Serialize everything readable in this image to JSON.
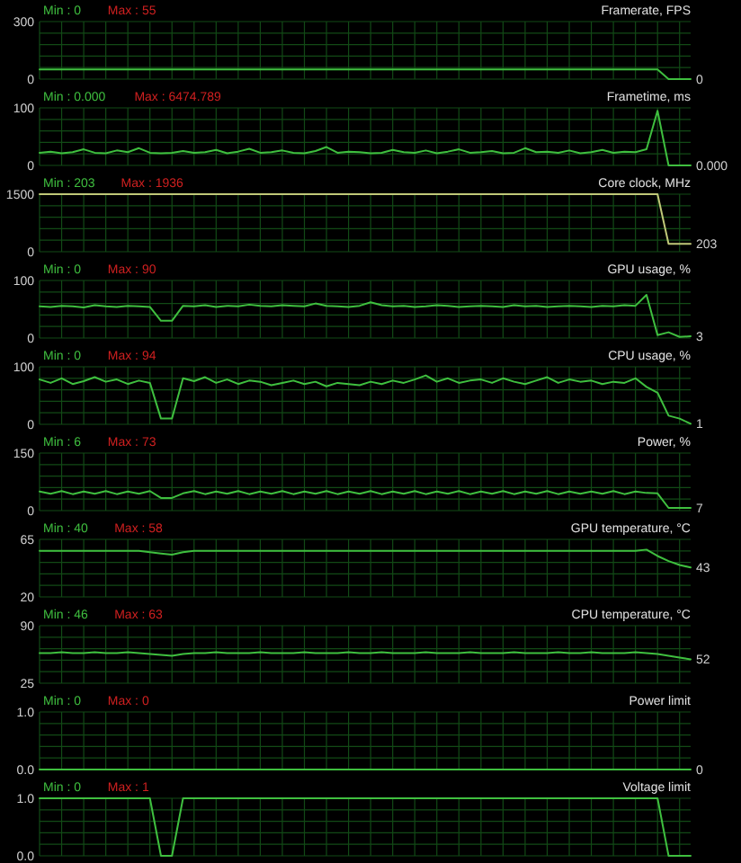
{
  "chart_data": [
    {
      "type": "line",
      "title": "Framerate, FPS",
      "annotations": [
        "Min : 0",
        "Max : 55"
      ],
      "grid": true,
      "ylim": [
        0,
        300
      ],
      "yticks": [
        0,
        {
          "value": 60,
          "label": null
        },
        {
          "value": 120,
          "label": null
        },
        {
          "value": 180,
          "label": null
        },
        {
          "value": 240,
          "label": null
        },
        300
      ],
      "categories": [
        null,
        null,
        null,
        null,
        null,
        null,
        null,
        null,
        null,
        null,
        null,
        null,
        null,
        null,
        null,
        null,
        null,
        null,
        null,
        null,
        null,
        null,
        null,
        null,
        null,
        null,
        null,
        null,
        null,
        null,
        null,
        null,
        null,
        null,
        null,
        null,
        null,
        null,
        null,
        null,
        null,
        null,
        null,
        null,
        null,
        null,
        null,
        null,
        null,
        null,
        null,
        null,
        null,
        null,
        null,
        null,
        null,
        null,
        null,
        null
      ],
      "series": [
        {
          "color": "#3fbf3f",
          "value_labels": [
            null,
            null,
            null,
            null,
            null,
            null,
            null,
            null,
            null,
            null,
            null,
            null,
            null,
            null,
            null,
            null,
            null,
            null,
            null,
            null,
            null,
            null,
            null,
            null,
            null,
            null,
            null,
            null,
            null,
            null,
            null,
            null,
            null,
            null,
            null,
            null,
            null,
            null,
            null,
            null,
            null,
            null,
            null,
            null,
            null,
            null,
            null,
            null,
            null,
            null,
            null,
            null,
            null,
            null,
            null,
            null,
            null,
            null,
            null,
            "0"
          ],
          "values": [
            50,
            50,
            50,
            50,
            50,
            50,
            50,
            50,
            50,
            50,
            50,
            50,
            50,
            50,
            50,
            50,
            50,
            50,
            50,
            50,
            50,
            50,
            50,
            50,
            50,
            50,
            50,
            50,
            50,
            50,
            50,
            50,
            50,
            50,
            50,
            50,
            50,
            50,
            50,
            50,
            50,
            50,
            50,
            50,
            50,
            50,
            50,
            50,
            50,
            50,
            50,
            50,
            50,
            50,
            50,
            50,
            50,
            0,
            0,
            0
          ]
        }
      ]
    },
    {
      "type": "line",
      "title": "Frametime, ms",
      "annotations": [
        "Min : 0.000",
        "Max : 6474.789"
      ],
      "grid": true,
      "ylim": [
        0,
        100
      ],
      "yticks": [
        0,
        {
          "value": 20,
          "label": null
        },
        {
          "value": 40,
          "label": null
        },
        {
          "value": 60,
          "label": null
        },
        {
          "value": 80,
          "label": null
        },
        100
      ],
      "categories": [
        null,
        null,
        null,
        null,
        null,
        null,
        null,
        null,
        null,
        null,
        null,
        null,
        null,
        null,
        null,
        null,
        null,
        null,
        null,
        null,
        null,
        null,
        null,
        null,
        null,
        null,
        null,
        null,
        null,
        null,
        null,
        null,
        null,
        null,
        null,
        null,
        null,
        null,
        null,
        null,
        null,
        null,
        null,
        null,
        null,
        null,
        null,
        null,
        null,
        null,
        null,
        null,
        null,
        null,
        null,
        null,
        null,
        null,
        null,
        null
      ],
      "series": [
        {
          "color": "#3fbf3f",
          "value_labels": [
            null,
            null,
            null,
            null,
            null,
            null,
            null,
            null,
            null,
            null,
            null,
            null,
            null,
            null,
            null,
            null,
            null,
            null,
            null,
            null,
            null,
            null,
            null,
            null,
            null,
            null,
            null,
            null,
            null,
            null,
            null,
            null,
            null,
            null,
            null,
            null,
            null,
            null,
            null,
            null,
            null,
            null,
            null,
            null,
            null,
            null,
            null,
            null,
            null,
            null,
            null,
            null,
            null,
            null,
            null,
            null,
            null,
            null,
            null,
            "0.000"
          ],
          "values": [
            22,
            24,
            21,
            23,
            28,
            22,
            21,
            26,
            23,
            30,
            22,
            21,
            22,
            25,
            22,
            23,
            27,
            21,
            24,
            29,
            22,
            23,
            26,
            22,
            21,
            25,
            32,
            22,
            24,
            23,
            21,
            22,
            27,
            23,
            22,
            26,
            21,
            24,
            28,
            22,
            23,
            25,
            21,
            22,
            30,
            23,
            24,
            22,
            26,
            21,
            23,
            27,
            22,
            24,
            23,
            28,
            95,
            0,
            0,
            0
          ]
        }
      ]
    },
    {
      "type": "line",
      "title": "Core clock, MHz",
      "annotations": [
        "Min : 203",
        "Max : 1936"
      ],
      "grid": true,
      "ylim": [
        0,
        1500
      ],
      "yticks": [
        0,
        {
          "value": 300,
          "label": null
        },
        {
          "value": 600,
          "label": null
        },
        {
          "value": 900,
          "label": null
        },
        {
          "value": 1200,
          "label": null
        },
        1500
      ],
      "categories": [
        null,
        null,
        null,
        null,
        null,
        null,
        null,
        null,
        null,
        null,
        null,
        null,
        null,
        null,
        null,
        null,
        null,
        null,
        null,
        null,
        null,
        null,
        null,
        null,
        null,
        null,
        null,
        null,
        null,
        null,
        null,
        null,
        null,
        null,
        null,
        null,
        null,
        null,
        null,
        null,
        null,
        null,
        null,
        null,
        null,
        null,
        null,
        null,
        null,
        null,
        null,
        null,
        null,
        null,
        null,
        null,
        null,
        null,
        null,
        null
      ],
      "series": [
        {
          "color": "#c0c878",
          "value_labels": [
            null,
            null,
            null,
            null,
            null,
            null,
            null,
            null,
            null,
            null,
            null,
            null,
            null,
            null,
            null,
            null,
            null,
            null,
            null,
            null,
            null,
            null,
            null,
            null,
            null,
            null,
            null,
            null,
            null,
            null,
            null,
            null,
            null,
            null,
            null,
            null,
            null,
            null,
            null,
            null,
            null,
            null,
            null,
            null,
            null,
            null,
            null,
            null,
            null,
            null,
            null,
            null,
            null,
            null,
            null,
            null,
            null,
            null,
            null,
            "203"
          ],
          "values": [
            1500,
            1500,
            1500,
            1500,
            1500,
            1500,
            1500,
            1500,
            1500,
            1500,
            1500,
            1500,
            1500,
            1500,
            1500,
            1500,
            1500,
            1500,
            1500,
            1500,
            1500,
            1500,
            1500,
            1500,
            1500,
            1500,
            1500,
            1500,
            1500,
            1500,
            1500,
            1500,
            1500,
            1500,
            1500,
            1500,
            1500,
            1500,
            1500,
            1500,
            1500,
            1500,
            1500,
            1500,
            1500,
            1500,
            1500,
            1500,
            1500,
            1500,
            1500,
            1500,
            1500,
            1500,
            1500,
            1500,
            1500,
            203,
            203,
            203
          ]
        }
      ]
    },
    {
      "type": "line",
      "title": "GPU usage, %",
      "annotations": [
        "Min : 0",
        "Max : 90"
      ],
      "grid": true,
      "ylim": [
        0,
        100
      ],
      "yticks": [
        0,
        {
          "value": 20,
          "label": null
        },
        {
          "value": 40,
          "label": null
        },
        {
          "value": 60,
          "label": null
        },
        {
          "value": 80,
          "label": null
        },
        100
      ],
      "categories": [
        null,
        null,
        null,
        null,
        null,
        null,
        null,
        null,
        null,
        null,
        null,
        null,
        null,
        null,
        null,
        null,
        null,
        null,
        null,
        null,
        null,
        null,
        null,
        null,
        null,
        null,
        null,
        null,
        null,
        null,
        null,
        null,
        null,
        null,
        null,
        null,
        null,
        null,
        null,
        null,
        null,
        null,
        null,
        null,
        null,
        null,
        null,
        null,
        null,
        null,
        null,
        null,
        null,
        null,
        null,
        null,
        null,
        null,
        null,
        null
      ],
      "series": [
        {
          "color": "#3fbf3f",
          "value_labels": [
            null,
            null,
            null,
            null,
            null,
            null,
            null,
            null,
            null,
            null,
            null,
            null,
            null,
            null,
            null,
            null,
            null,
            null,
            null,
            null,
            null,
            null,
            null,
            null,
            null,
            null,
            null,
            null,
            null,
            null,
            null,
            null,
            null,
            null,
            null,
            null,
            null,
            null,
            null,
            null,
            null,
            null,
            null,
            null,
            null,
            null,
            null,
            null,
            null,
            null,
            null,
            null,
            null,
            null,
            null,
            null,
            null,
            null,
            null,
            "3"
          ],
          "values": [
            55,
            54,
            56,
            55,
            53,
            57,
            55,
            54,
            56,
            55,
            54,
            30,
            30,
            56,
            55,
            57,
            54,
            56,
            55,
            58,
            56,
            55,
            57,
            56,
            55,
            60,
            56,
            55,
            54,
            56,
            62,
            57,
            55,
            56,
            54,
            55,
            57,
            56,
            54,
            55,
            56,
            55,
            54,
            57,
            55,
            56,
            54,
            55,
            56,
            55,
            54,
            56,
            55,
            57,
            56,
            75,
            5,
            10,
            2,
            3
          ]
        }
      ]
    },
    {
      "type": "line",
      "title": "CPU usage, %",
      "annotations": [
        "Min : 0",
        "Max : 94"
      ],
      "grid": true,
      "ylim": [
        0,
        100
      ],
      "yticks": [
        0,
        {
          "value": 20,
          "label": null
        },
        {
          "value": 40,
          "label": null
        },
        {
          "value": 60,
          "label": null
        },
        {
          "value": 80,
          "label": null
        },
        100
      ],
      "categories": [
        null,
        null,
        null,
        null,
        null,
        null,
        null,
        null,
        null,
        null,
        null,
        null,
        null,
        null,
        null,
        null,
        null,
        null,
        null,
        null,
        null,
        null,
        null,
        null,
        null,
        null,
        null,
        null,
        null,
        null,
        null,
        null,
        null,
        null,
        null,
        null,
        null,
        null,
        null,
        null,
        null,
        null,
        null,
        null,
        null,
        null,
        null,
        null,
        null,
        null,
        null,
        null,
        null,
        null,
        null,
        null,
        null,
        null,
        null,
        null
      ],
      "series": [
        {
          "color": "#3fbf3f",
          "value_labels": [
            null,
            null,
            null,
            null,
            null,
            null,
            null,
            null,
            null,
            null,
            null,
            null,
            null,
            null,
            null,
            null,
            null,
            null,
            null,
            null,
            null,
            null,
            null,
            null,
            null,
            null,
            null,
            null,
            null,
            null,
            null,
            null,
            null,
            null,
            null,
            null,
            null,
            null,
            null,
            null,
            null,
            null,
            null,
            null,
            null,
            null,
            null,
            null,
            null,
            null,
            null,
            null,
            null,
            null,
            null,
            null,
            null,
            null,
            null,
            "1"
          ],
          "values": [
            78,
            72,
            80,
            70,
            75,
            82,
            74,
            78,
            70,
            76,
            72,
            10,
            10,
            80,
            75,
            82,
            72,
            78,
            70,
            76,
            74,
            68,
            72,
            76,
            70,
            74,
            66,
            72,
            70,
            68,
            74,
            70,
            76,
            72,
            78,
            85,
            74,
            80,
            72,
            76,
            78,
            72,
            80,
            74,
            70,
            76,
            82,
            72,
            78,
            74,
            76,
            70,
            74,
            72,
            80,
            65,
            55,
            15,
            10,
            1
          ]
        }
      ]
    },
    {
      "type": "line",
      "title": "Power, %",
      "annotations": [
        "Min : 6",
        "Max : 73"
      ],
      "grid": true,
      "ylim": [
        0,
        150
      ],
      "yticks": [
        0,
        {
          "value": 30,
          "label": null
        },
        {
          "value": 60,
          "label": null
        },
        {
          "value": 90,
          "label": null
        },
        {
          "value": 120,
          "label": null
        },
        150
      ],
      "categories": [
        null,
        null,
        null,
        null,
        null,
        null,
        null,
        null,
        null,
        null,
        null,
        null,
        null,
        null,
        null,
        null,
        null,
        null,
        null,
        null,
        null,
        null,
        null,
        null,
        null,
        null,
        null,
        null,
        null,
        null,
        null,
        null,
        null,
        null,
        null,
        null,
        null,
        null,
        null,
        null,
        null,
        null,
        null,
        null,
        null,
        null,
        null,
        null,
        null,
        null,
        null,
        null,
        null,
        null,
        null,
        null,
        null,
        null,
        null,
        null
      ],
      "series": [
        {
          "color": "#3fbf3f",
          "value_labels": [
            null,
            null,
            null,
            null,
            null,
            null,
            null,
            null,
            null,
            null,
            null,
            null,
            null,
            null,
            null,
            null,
            null,
            null,
            null,
            null,
            null,
            null,
            null,
            null,
            null,
            null,
            null,
            null,
            null,
            null,
            null,
            null,
            null,
            null,
            null,
            null,
            null,
            null,
            null,
            null,
            null,
            null,
            null,
            null,
            null,
            null,
            null,
            null,
            null,
            null,
            null,
            null,
            null,
            null,
            null,
            null,
            null,
            null,
            null,
            "7"
          ],
          "values": [
            50,
            44,
            51,
            43,
            50,
            44,
            51,
            43,
            50,
            44,
            51,
            33,
            33,
            45,
            51,
            43,
            50,
            44,
            51,
            43,
            50,
            44,
            51,
            43,
            50,
            44,
            51,
            43,
            50,
            44,
            51,
            43,
            50,
            44,
            51,
            43,
            50,
            44,
            51,
            43,
            50,
            44,
            51,
            43,
            50,
            44,
            51,
            43,
            50,
            44,
            50,
            44,
            51,
            43,
            50,
            46,
            45,
            7,
            7,
            7
          ]
        }
      ]
    },
    {
      "type": "line",
      "title": "GPU temperature, °C",
      "annotations": [
        "Min : 40",
        "Max : 58"
      ],
      "grid": true,
      "ylim": [
        20,
        65
      ],
      "yticks": [
        20,
        {
          "value": 29,
          "label": null
        },
        {
          "value": 38,
          "label": null
        },
        {
          "value": 47,
          "label": null
        },
        {
          "value": 56,
          "label": null
        },
        65
      ],
      "categories": [
        null,
        null,
        null,
        null,
        null,
        null,
        null,
        null,
        null,
        null,
        null,
        null,
        null,
        null,
        null,
        null,
        null,
        null,
        null,
        null,
        null,
        null,
        null,
        null,
        null,
        null,
        null,
        null,
        null,
        null,
        null,
        null,
        null,
        null,
        null,
        null,
        null,
        null,
        null,
        null,
        null,
        null,
        null,
        null,
        null,
        null,
        null,
        null,
        null,
        null,
        null,
        null,
        null,
        null,
        null,
        null,
        null,
        null,
        null,
        null
      ],
      "series": [
        {
          "color": "#3fbf3f",
          "value_labels": [
            null,
            null,
            null,
            null,
            null,
            null,
            null,
            null,
            null,
            null,
            null,
            null,
            null,
            null,
            null,
            null,
            null,
            null,
            null,
            null,
            null,
            null,
            null,
            null,
            null,
            null,
            null,
            null,
            null,
            null,
            null,
            null,
            null,
            null,
            null,
            null,
            null,
            null,
            null,
            null,
            null,
            null,
            null,
            null,
            null,
            null,
            null,
            null,
            null,
            null,
            null,
            null,
            null,
            null,
            null,
            null,
            null,
            null,
            null,
            "43"
          ],
          "values": [
            56,
            56,
            56,
            56,
            56,
            56,
            56,
            56,
            56,
            56,
            55,
            54,
            53,
            55,
            56,
            56,
            56,
            56,
            56,
            56,
            56,
            56,
            56,
            56,
            56,
            56,
            56,
            56,
            56,
            56,
            56,
            56,
            56,
            56,
            56,
            56,
            56,
            56,
            56,
            56,
            56,
            56,
            56,
            56,
            56,
            56,
            56,
            56,
            56,
            56,
            56,
            56,
            56,
            56,
            56,
            57,
            52,
            48,
            45,
            43
          ]
        }
      ]
    },
    {
      "type": "line",
      "title": "CPU temperature, °C",
      "annotations": [
        "Min : 46",
        "Max : 63"
      ],
      "grid": true,
      "ylim": [
        25,
        90
      ],
      "yticks": [
        25,
        {
          "value": 38,
          "label": null
        },
        {
          "value": 51,
          "label": null
        },
        {
          "value": 64,
          "label": null
        },
        {
          "value": 77,
          "label": null
        },
        90
      ],
      "categories": [
        null,
        null,
        null,
        null,
        null,
        null,
        null,
        null,
        null,
        null,
        null,
        null,
        null,
        null,
        null,
        null,
        null,
        null,
        null,
        null,
        null,
        null,
        null,
        null,
        null,
        null,
        null,
        null,
        null,
        null,
        null,
        null,
        null,
        null,
        null,
        null,
        null,
        null,
        null,
        null,
        null,
        null,
        null,
        null,
        null,
        null,
        null,
        null,
        null,
        null,
        null,
        null,
        null,
        null,
        null,
        null,
        null,
        null,
        null,
        null
      ],
      "series": [
        {
          "color": "#3fbf3f",
          "value_labels": [
            null,
            null,
            null,
            null,
            null,
            null,
            null,
            null,
            null,
            null,
            null,
            null,
            null,
            null,
            null,
            null,
            null,
            null,
            null,
            null,
            null,
            null,
            null,
            null,
            null,
            null,
            null,
            null,
            null,
            null,
            null,
            null,
            null,
            null,
            null,
            null,
            null,
            null,
            null,
            null,
            null,
            null,
            null,
            null,
            null,
            null,
            null,
            null,
            null,
            null,
            null,
            null,
            null,
            null,
            null,
            null,
            null,
            null,
            null,
            "52"
          ],
          "values": [
            59,
            59,
            60,
            59,
            59,
            60,
            59,
            59,
            60,
            59,
            58,
            57,
            56,
            58,
            59,
            59,
            60,
            59,
            59,
            59,
            60,
            59,
            59,
            59,
            60,
            59,
            59,
            59,
            60,
            59,
            59,
            60,
            59,
            59,
            59,
            60,
            59,
            59,
            59,
            60,
            59,
            59,
            59,
            60,
            59,
            59,
            59,
            60,
            59,
            59,
            60,
            59,
            59,
            59,
            60,
            59,
            58,
            56,
            54,
            52
          ]
        }
      ]
    },
    {
      "type": "line",
      "title": "Power limit",
      "annotations": [
        "Min : 0",
        "Max : 0"
      ],
      "grid": true,
      "ylim": [
        0,
        1
      ],
      "yticks": [
        {
          "value": 0,
          "label": "0.0"
        },
        {
          "value": 0.2,
          "label": null
        },
        {
          "value": 0.4,
          "label": null
        },
        {
          "value": 0.6,
          "label": null
        },
        {
          "value": 0.8,
          "label": null
        },
        {
          "value": 1,
          "label": "1.0"
        }
      ],
      "categories": [
        null,
        null,
        null,
        null,
        null,
        null,
        null,
        null,
        null,
        null,
        null,
        null,
        null,
        null,
        null,
        null,
        null,
        null,
        null,
        null,
        null,
        null,
        null,
        null,
        null,
        null,
        null,
        null,
        null,
        null,
        null,
        null,
        null,
        null,
        null,
        null,
        null,
        null,
        null,
        null,
        null,
        null,
        null,
        null,
        null,
        null,
        null,
        null,
        null,
        null,
        null,
        null,
        null,
        null,
        null,
        null,
        null,
        null,
        null,
        null
      ],
      "series": [
        {
          "color": "#3fbf3f",
          "value_labels": [
            null,
            null,
            null,
            null,
            null,
            null,
            null,
            null,
            null,
            null,
            null,
            null,
            null,
            null,
            null,
            null,
            null,
            null,
            null,
            null,
            null,
            null,
            null,
            null,
            null,
            null,
            null,
            null,
            null,
            null,
            null,
            null,
            null,
            null,
            null,
            null,
            null,
            null,
            null,
            null,
            null,
            null,
            null,
            null,
            null,
            null,
            null,
            null,
            null,
            null,
            null,
            null,
            null,
            null,
            null,
            null,
            null,
            null,
            null,
            "0"
          ],
          "values": [
            0,
            0,
            0,
            0,
            0,
            0,
            0,
            0,
            0,
            0,
            0,
            0,
            0,
            0,
            0,
            0,
            0,
            0,
            0,
            0,
            0,
            0,
            0,
            0,
            0,
            0,
            0,
            0,
            0,
            0,
            0,
            0,
            0,
            0,
            0,
            0,
            0,
            0,
            0,
            0,
            0,
            0,
            0,
            0,
            0,
            0,
            0,
            0,
            0,
            0,
            0,
            0,
            0,
            0,
            0,
            0,
            0,
            0,
            0,
            0
          ]
        }
      ]
    },
    {
      "type": "line",
      "title": "Voltage limit",
      "annotations": [
        "Min : 0",
        "Max : 1"
      ],
      "grid": true,
      "ylim": [
        0,
        1
      ],
      "yticks": [
        {
          "value": 0,
          "label": "0.0"
        },
        {
          "value": 0.2,
          "label": null
        },
        {
          "value": 0.4,
          "label": null
        },
        {
          "value": 0.6,
          "label": null
        },
        {
          "value": 0.8,
          "label": null
        },
        {
          "value": 1,
          "label": "1.0"
        }
      ],
      "categories": [
        null,
        null,
        null,
        null,
        null,
        null,
        null,
        null,
        null,
        null,
        null,
        null,
        null,
        null,
        null,
        null,
        null,
        null,
        null,
        null,
        null,
        null,
        null,
        null,
        null,
        null,
        null,
        null,
        null,
        null,
        null,
        null,
        null,
        null,
        null,
        null,
        null,
        null,
        null,
        null,
        null,
        null,
        null,
        null,
        null,
        null,
        null,
        null,
        null,
        null,
        null,
        null,
        null,
        null,
        null,
        null,
        null,
        null,
        null,
        null
      ],
      "series": [
        {
          "color": "#3fbf3f",
          "values": [
            1,
            1,
            1,
            1,
            1,
            1,
            1,
            1,
            1,
            1,
            1,
            0,
            0,
            1,
            1,
            1,
            1,
            1,
            1,
            1,
            1,
            1,
            1,
            1,
            1,
            1,
            1,
            1,
            1,
            1,
            1,
            1,
            1,
            1,
            1,
            1,
            1,
            1,
            1,
            1,
            1,
            1,
            1,
            1,
            1,
            1,
            1,
            1,
            1,
            1,
            1,
            1,
            1,
            1,
            1,
            1,
            1,
            0,
            0,
            0
          ]
        }
      ]
    }
  ]
}
